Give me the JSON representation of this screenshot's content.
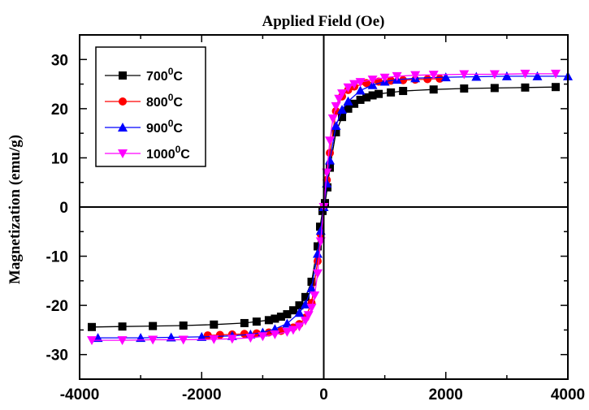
{
  "chart_data": {
    "type": "scatter",
    "title": "",
    "xlabel": "Applied Field  (Oe)",
    "ylabel": "Magnetization (emu/g)",
    "xlim": [
      -4000,
      4000
    ],
    "ylim": [
      -35,
      35
    ],
    "xticks": [
      -4000,
      -2000,
      0,
      2000,
      4000
    ],
    "xtick_labels": [
      "-4000",
      "-2000",
      "0",
      "2000",
      "4000"
    ],
    "yticks": [
      -30,
      -20,
      -10,
      0,
      10,
      20,
      30
    ],
    "ytick_labels": [
      "-30",
      "-20",
      "-10",
      "0",
      "10",
      "20",
      "30"
    ],
    "grid": false,
    "legend_position": "top-left",
    "series": [
      {
        "name": "700",
        "name_sup": "0",
        "name_suffix": "C",
        "color": "#000000",
        "marker": "square",
        "x": [
          -3800,
          -3300,
          -2800,
          -2300,
          -1800,
          -1300,
          -1100,
          -900,
          -800,
          -700,
          -600,
          -500,
          -400,
          -300,
          -200,
          -100,
          -60,
          -20,
          20,
          60,
          100,
          200,
          300,
          400,
          500,
          600,
          700,
          800,
          900,
          1100,
          1300,
          1800,
          2300,
          2800,
          3300,
          3800
        ],
        "y": [
          -24.4,
          -24.3,
          -24.2,
          -24.1,
          -23.9,
          -23.6,
          -23.3,
          -23.0,
          -22.7,
          -22.3,
          -21.8,
          -21.0,
          -20.0,
          -18.3,
          -15.2,
          -8.0,
          -4.0,
          -0.8,
          0.8,
          4.0,
          8.0,
          15.2,
          18.3,
          20.0,
          21.0,
          21.8,
          22.3,
          22.7,
          23.0,
          23.3,
          23.6,
          23.9,
          24.1,
          24.2,
          24.3,
          24.4
        ]
      },
      {
        "name": "800",
        "name_sup": "0",
        "name_suffix": "C",
        "color": "#ff0000",
        "marker": "circle",
        "x": [
          -1900,
          -1700,
          -1500,
          -1300,
          -1100,
          -900,
          -700,
          -500,
          -400,
          -300,
          -200,
          -100,
          -50,
          0,
          50,
          100,
          200,
          300,
          400,
          500,
          700,
          900,
          1100,
          1300,
          1500,
          1700,
          1900
        ],
        "y": [
          -26.1,
          -26.0,
          -25.9,
          -25.8,
          -25.7,
          -25.5,
          -25.2,
          -24.5,
          -23.8,
          -22.5,
          -19.5,
          -11.0,
          -5.5,
          0.0,
          5.5,
          11.0,
          19.5,
          22.5,
          23.8,
          24.5,
          25.2,
          25.5,
          25.7,
          25.8,
          25.9,
          26.0,
          26.1
        ]
      },
      {
        "name": "900",
        "name_sup": "0",
        "name_suffix": "C",
        "color": "#0000ff",
        "marker": "triangle-up",
        "x": [
          -3700,
          -3000,
          -2500,
          -2000,
          -1500,
          -1200,
          -1000,
          -800,
          -600,
          -400,
          -300,
          -200,
          -100,
          -50,
          0,
          50,
          100,
          200,
          300,
          400,
          600,
          800,
          1000,
          1200,
          1500,
          2000,
          2500,
          3000,
          3500,
          4000
        ],
        "y": [
          -26.6,
          -26.6,
          -26.5,
          -26.4,
          -26.2,
          -25.9,
          -25.5,
          -24.8,
          -23.7,
          -21.5,
          -19.8,
          -16.5,
          -9.5,
          -4.8,
          0.0,
          4.8,
          9.5,
          16.5,
          19.8,
          21.5,
          23.7,
          24.8,
          25.5,
          25.9,
          26.2,
          26.4,
          26.5,
          26.6,
          26.6,
          26.6
        ]
      },
      {
        "name": "1000",
        "name_sup": "0",
        "name_suffix": "C",
        "color": "#ff00ff",
        "marker": "triangle-down",
        "x": [
          -3800,
          -3300,
          -2800,
          -2300,
          -1800,
          -1500,
          -1200,
          -1000,
          -800,
          -600,
          -500,
          -400,
          -300,
          -250,
          -200,
          -150,
          -100,
          -50,
          0,
          50,
          100,
          150,
          200,
          250,
          300,
          400,
          500,
          600,
          800,
          1000,
          1200,
          1500,
          1800,
          2300,
          2800,
          3300,
          3800
        ],
        "y": [
          -27.1,
          -27.1,
          -27.0,
          -27.0,
          -26.9,
          -26.8,
          -26.6,
          -26.3,
          -25.9,
          -25.4,
          -25.0,
          -24.3,
          -23.1,
          -22.0,
          -20.5,
          -18.0,
          -13.5,
          -7.0,
          0.0,
          7.0,
          13.5,
          18.0,
          20.5,
          22.0,
          23.1,
          24.3,
          25.0,
          25.4,
          25.9,
          26.3,
          26.6,
          26.8,
          26.9,
          27.0,
          27.0,
          27.1,
          27.1
        ]
      }
    ]
  }
}
